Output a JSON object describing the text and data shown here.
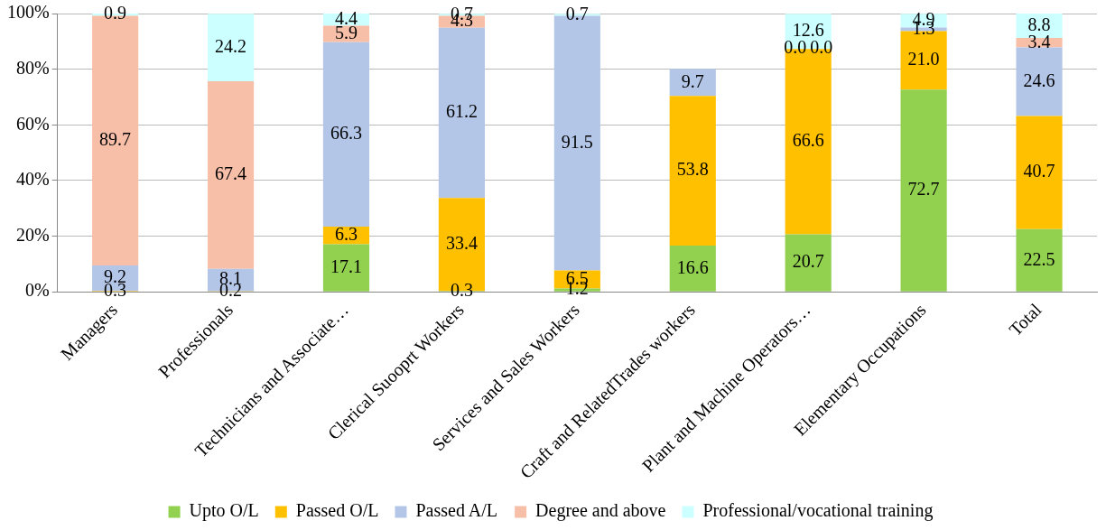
{
  "chart_data": {
    "type": "bar",
    "stacked": true,
    "categories": [
      "Managers",
      "Professionals",
      "Technicians and Associate…",
      "Clerical Suooprt Workers",
      "Services and Sales Workers",
      "Craft and RelatedTrades workers",
      "Plant and Machine Operators…",
      "Elementary Occupations",
      "Total"
    ],
    "series": [
      {
        "name": "Upto O/L",
        "color": "#92d050",
        "values": [
          null,
          null,
          17.1,
          0.3,
          1.2,
          16.6,
          20.7,
          72.7,
          22.5
        ],
        "value_labels": [
          null,
          null,
          "17.1",
          "0.3",
          "1.2",
          "16.6",
          "20.7",
          "72.7",
          "22.5"
        ]
      },
      {
        "name": "Passed O/L",
        "color": "#ffc000",
        "values": [
          0.3,
          0.2,
          6.3,
          33.4,
          6.5,
          53.8,
          66.6,
          21.0,
          40.7
        ],
        "value_labels": [
          "0.3",
          "0.2",
          "6.3",
          "33.4",
          "6.5",
          "53.8",
          "66.6",
          "21.0",
          "40.7"
        ]
      },
      {
        "name": "Passed A/L",
        "color": "#b4c6e7",
        "values": [
          9.2,
          8.1,
          66.3,
          61.2,
          91.5,
          9.7,
          0.0,
          1.3,
          24.6
        ],
        "value_labels": [
          "9.2",
          "8.1",
          "66.3",
          "61.2",
          "91.5",
          "9.7",
          "0.0",
          "1.3",
          "24.6"
        ]
      },
      {
        "name": "Degree and above",
        "color": "#f8bfa8",
        "values": [
          89.7,
          67.4,
          5.9,
          4.3,
          null,
          null,
          0.0,
          null,
          3.4
        ],
        "value_labels": [
          "89.7",
          "67.4",
          "5.9",
          "4.3",
          null,
          null,
          "0.0",
          null,
          "3.4"
        ]
      },
      {
        "name": "Professional/vocational training",
        "color": "#ccffff",
        "values": [
          0.9,
          24.2,
          4.4,
          0.7,
          0.7,
          null,
          12.6,
          4.9,
          8.8
        ],
        "value_labels": [
          "0.9",
          "24.2",
          "4.4",
          "0.7",
          "0.7",
          null,
          "12.6",
          "4.9",
          "8.8"
        ]
      }
    ],
    "ylim": [
      0,
      100
    ],
    "yticks": [
      {
        "value": 0,
        "label": "0%"
      },
      {
        "value": 20,
        "label": "20%"
      },
      {
        "value": 40,
        "label": "40%"
      },
      {
        "value": 60,
        "label": "60%"
      },
      {
        "value": 80,
        "label": "80%"
      },
      {
        "value": 100,
        "label": "100%"
      }
    ],
    "grid": "y",
    "legend": "bottom"
  }
}
